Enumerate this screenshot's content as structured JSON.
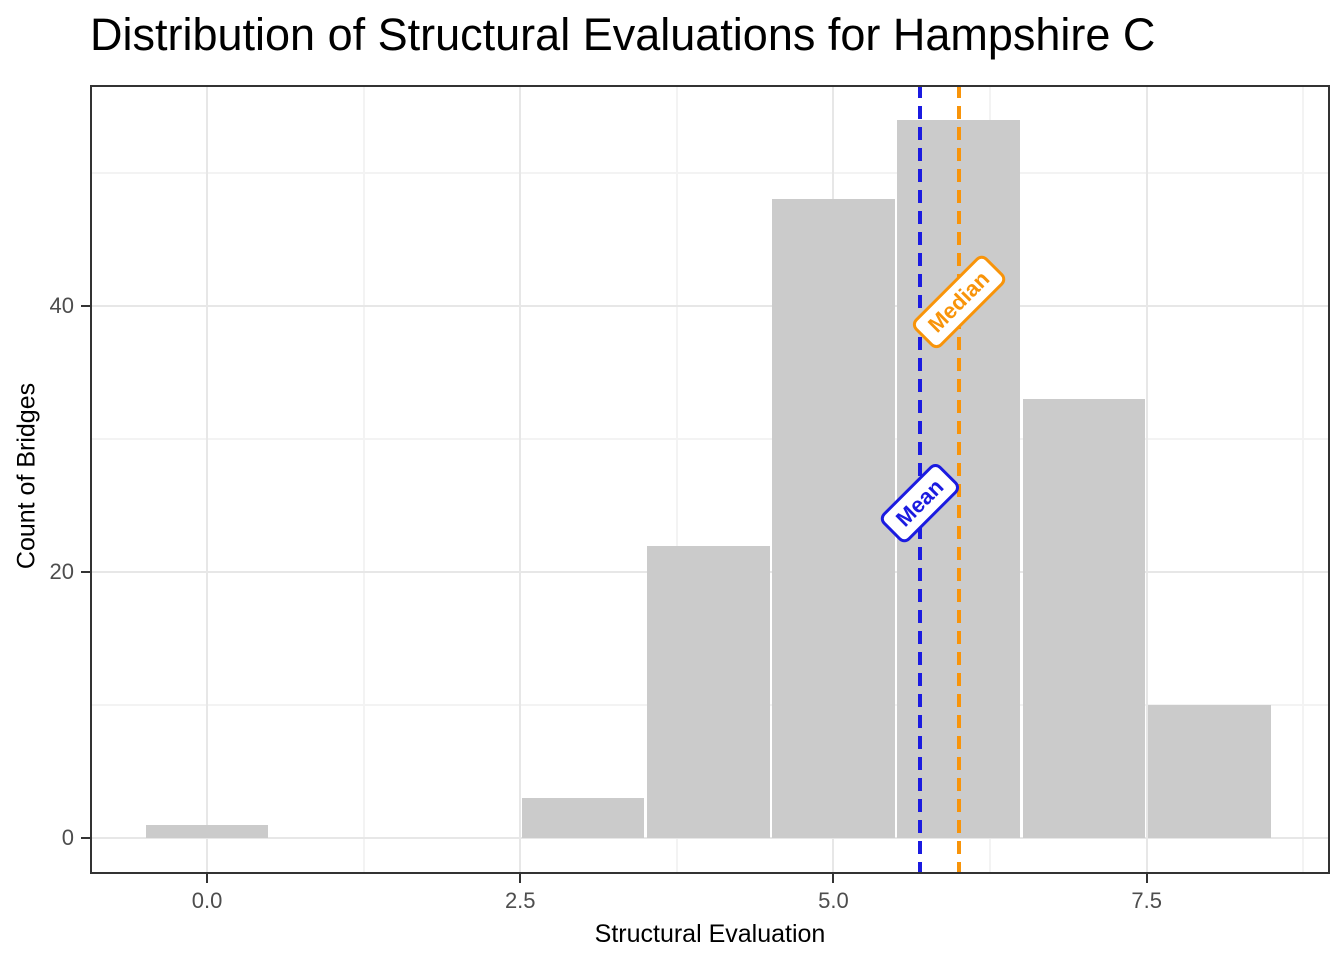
{
  "title": "Distribution of Structural Evaluations for Hampshire C",
  "chart_data": {
    "type": "bar",
    "subtype": "histogram",
    "title": "Distribution of Structural Evaluations for Hampshire C",
    "xlabel": "Structural Evaluation",
    "ylabel": "Count of Bridges",
    "bar_centers": [
      0,
      3,
      4,
      5,
      6,
      7,
      8
    ],
    "values": [
      1,
      3,
      22,
      48,
      54,
      33,
      10
    ],
    "binwidth": 1,
    "x_ticks": [
      0,
      2.5,
      5,
      7.5
    ],
    "x_tick_labels": [
      "0.0",
      "2.5",
      "5.0",
      "7.5"
    ],
    "x_minor_ticks": [
      1.25,
      3.75,
      6.25,
      8.75
    ],
    "y_ticks": [
      0,
      20,
      40
    ],
    "y_tick_labels": [
      "0",
      "20",
      "40"
    ],
    "y_minor_ticks": [
      10,
      30,
      50
    ],
    "x_domain": [
      -0.934,
      8.963
    ],
    "y_domain": [
      -2.68,
      56.6
    ],
    "grid": true,
    "legend": "none",
    "annotations": [
      {
        "name": "mean",
        "label": "Mean",
        "x": 5.69,
        "label_y": 25.2,
        "color": "#1b1be0"
      },
      {
        "name": "median",
        "label": "Median",
        "x": 6.0,
        "label_y": 40.3,
        "color": "#f8940a"
      }
    ],
    "colors": {
      "bar_fill": "#cbcbcb",
      "panel_border": "#333333",
      "grid_major": "#e7e7e7",
      "grid_minor": "#f3f3f3",
      "tick_label": "#4d4d4d",
      "text": "#000000",
      "mean_line": "#1b1be0",
      "median_line": "#f8940a"
    }
  }
}
